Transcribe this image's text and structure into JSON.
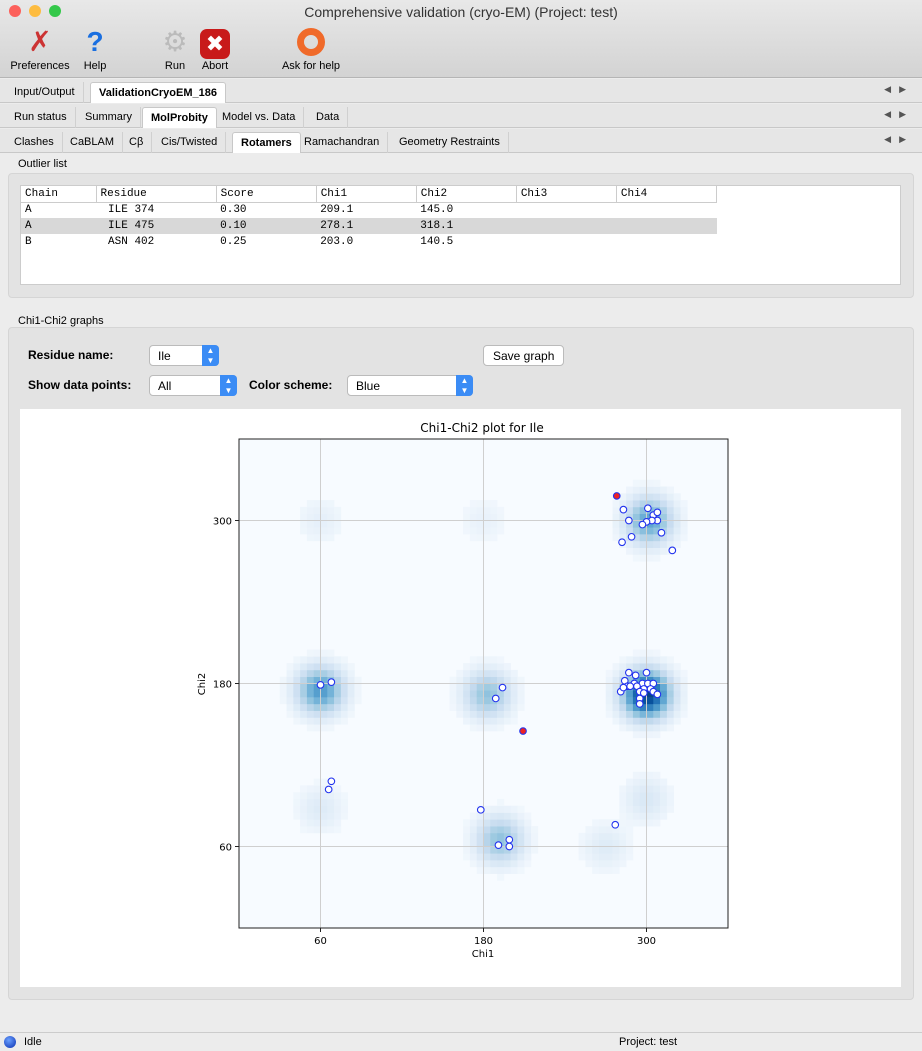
{
  "window": {
    "title": "Comprehensive validation (cryo-EM) (Project: test)"
  },
  "toolbar": [
    {
      "label": "Preferences",
      "icon": "tools-icon"
    },
    {
      "label": "Help",
      "icon": "help-icon"
    },
    {
      "label": "Run",
      "icon": "gear-icon"
    },
    {
      "label": "Abort",
      "icon": "abort-icon"
    },
    {
      "label": "Ask for help",
      "icon": "lifebuoy-icon"
    }
  ],
  "tabs_main": [
    "Input/Output",
    "ValidationCryoEM_186"
  ],
  "tabs_sub": [
    "Run status",
    "Summary",
    "MolProbity",
    "Model vs. Data",
    "Data"
  ],
  "tabs_mp": [
    "Clashes",
    "CaBLAM",
    "Cβ",
    "Cis/Twisted",
    "Rotamers",
    "Ramachandran",
    "Geometry Restraints"
  ],
  "outliers": {
    "label": "Outlier list",
    "columns": [
      "Chain",
      "Residue",
      "Score",
      "Chi1",
      "Chi2",
      "Chi3",
      "Chi4"
    ],
    "rows": [
      [
        "A",
        "ILE  374",
        "0.30",
        "209.1",
        "145.0",
        "",
        ""
      ],
      [
        "A",
        "ILE  475",
        "0.10",
        "278.1",
        "318.1",
        "",
        ""
      ],
      [
        "B",
        "ASN  402",
        "0.25",
        "203.0",
        "140.5",
        "",
        ""
      ]
    ],
    "selected_row": 1
  },
  "graphs": {
    "label": "Chi1-Chi2 graphs",
    "residue_label": "Residue name:",
    "residue_value": "Ile",
    "points_label": "Show data points:",
    "points_value": "All",
    "scheme_label": "Color scheme:",
    "scheme_value": "Blue",
    "save_label": "Save graph"
  },
  "chart_data": {
    "type": "scatter",
    "title": "Chi1-Chi2 plot for Ile",
    "xlabel": "Chi1",
    "ylabel": "Chi2",
    "xlim": [
      0,
      360
    ],
    "ylim": [
      0,
      360
    ],
    "xticks": [
      60,
      180,
      300
    ],
    "yticks": [
      60,
      180,
      300
    ],
    "grid": true,
    "background": "heatmap (Blues colormap)",
    "point_color": "#ffffff",
    "point_edge": "#2233ee",
    "outlier_color": "#ee2222",
    "density_peaks": [
      {
        "x": 300,
        "y": 172,
        "w": 1.0
      },
      {
        "x": 60,
        "y": 175,
        "w": 0.55
      },
      {
        "x": 183,
        "y": 172,
        "w": 0.35
      },
      {
        "x": 302,
        "y": 300,
        "w": 0.5
      },
      {
        "x": 192,
        "y": 65,
        "w": 0.35
      },
      {
        "x": 60,
        "y": 88,
        "w": 0.08
      },
      {
        "x": 300,
        "y": 95,
        "w": 0.1
      },
      {
        "x": 270,
        "y": 60,
        "w": 0.08
      },
      {
        "x": 60,
        "y": 300,
        "w": 0.05
      },
      {
        "x": 180,
        "y": 300,
        "w": 0.04
      }
    ],
    "points": [
      [
        283,
        308
      ],
      [
        287,
        300
      ],
      [
        301,
        309
      ],
      [
        305,
        304
      ],
      [
        308,
        306
      ],
      [
        308,
        300
      ],
      [
        304,
        300
      ],
      [
        300,
        299
      ],
      [
        297,
        297
      ],
      [
        311,
        291
      ],
      [
        289,
        288
      ],
      [
        282,
        284
      ],
      [
        319,
        278
      ],
      [
        287,
        188
      ],
      [
        292,
        186
      ],
      [
        300,
        188
      ],
      [
        284,
        182
      ],
      [
        286,
        178
      ],
      [
        281,
        174
      ],
      [
        283,
        177
      ],
      [
        291,
        180
      ],
      [
        297,
        180
      ],
      [
        301,
        180
      ],
      [
        305,
        180
      ],
      [
        288,
        178
      ],
      [
        293,
        178
      ],
      [
        298,
        176
      ],
      [
        303,
        176
      ],
      [
        295,
        174
      ],
      [
        298,
        173
      ],
      [
        305,
        174
      ],
      [
        308,
        172
      ],
      [
        295,
        169
      ],
      [
        295,
        165
      ],
      [
        60,
        179
      ],
      [
        68,
        181
      ],
      [
        189,
        169
      ],
      [
        194,
        177
      ],
      [
        66,
        102
      ],
      [
        68,
        108
      ],
      [
        178,
        87
      ],
      [
        191,
        61
      ],
      [
        199,
        65
      ],
      [
        199,
        60
      ],
      [
        277,
        76
      ]
    ],
    "outlier_points": [
      [
        278.1,
        318.1
      ],
      [
        209.1,
        145.0
      ]
    ]
  },
  "status": {
    "state": "Idle",
    "project": "Project: test"
  }
}
